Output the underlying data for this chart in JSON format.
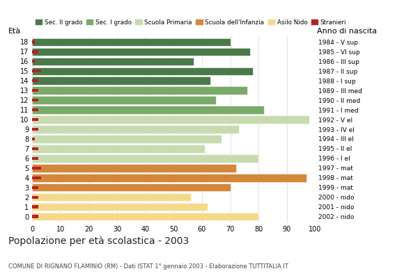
{
  "ages": [
    18,
    17,
    16,
    15,
    14,
    13,
    12,
    11,
    10,
    9,
    8,
    7,
    6,
    5,
    4,
    3,
    2,
    1,
    0
  ],
  "right_labels": [
    "1984 - V sup",
    "1985 - VI sup",
    "1986 - III sup",
    "1987 - II sup",
    "1988 - I sup",
    "1989 - III med",
    "1990 - II med",
    "1991 - I med",
    "1992 - V el",
    "1993 - IV el",
    "1994 - III el",
    "1995 - II el",
    "1996 - I el",
    "1997 - mat",
    "1998 - mat",
    "1999 - mat",
    "2000 - nido",
    "2001 - nido",
    "2002 - nido"
  ],
  "bar_values": [
    70,
    77,
    57,
    78,
    63,
    76,
    65,
    82,
    98,
    73,
    67,
    61,
    80,
    72,
    97,
    70,
    56,
    62,
    80
  ],
  "stranieri_values": [
    1,
    2,
    1,
    3,
    2,
    2,
    2,
    2,
    2,
    2,
    1,
    2,
    2,
    3,
    3,
    2,
    2,
    2,
    2
  ],
  "categories": {
    "sec2": [
      18,
      17,
      16,
      15,
      14
    ],
    "sec1": [
      13,
      12,
      11
    ],
    "primaria": [
      10,
      9,
      8,
      7,
      6
    ],
    "infanzia": [
      5,
      4,
      3
    ],
    "nido": [
      2,
      1,
      0
    ]
  },
  "colors": {
    "sec2": "#4a7a4a",
    "sec1": "#7aaa6a",
    "primaria": "#c8dbb0",
    "infanzia": "#d4873a",
    "nido": "#f5d98b",
    "stranieri": "#b22222"
  },
  "legend_labels": [
    "Sec. II grado",
    "Sec. I grado",
    "Scuola Primaria",
    "Scuola dell'Infanzia",
    "Asilo Nido",
    "Stranieri"
  ],
  "title": "Popolazione per età scolastica - 2003",
  "subtitle": "COMUNE DI RIGNANO FLAMINIO (RM) - Dati ISTAT 1° gennaio 2003 - Elaborazione TUTTITALIA.IT",
  "eta_label": "Età",
  "anno_label": "Anno di nascita",
  "xlim": [
    0,
    100
  ],
  "xticks": [
    0,
    10,
    20,
    30,
    40,
    50,
    60,
    70,
    80,
    90,
    100
  ],
  "background_color": "#ffffff",
  "grid_color": "#999999"
}
